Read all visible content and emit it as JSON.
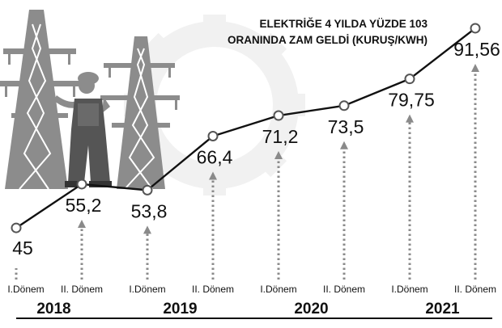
{
  "chart_data": {
    "type": "line",
    "title_lines": [
      "ELEKTRİĞE 4 YILDA YÜZDE 103",
      "ORANINDA ZAM GELDİ (KURUŞ/KWH)"
    ],
    "x": [
      "2018 I.Dönem",
      "2018 II. Dönem",
      "2019 I.Dönem",
      "2019 II. Dönem",
      "2020 I.Dönem",
      "2020 II. Dönem",
      "2021 I.Dönem",
      "2021 II. Dönem"
    ],
    "period_labels": [
      "I.Dönem",
      "II. Dönem",
      "I.Dönem",
      "II. Dönem",
      "I.Dönem",
      "II. Dönem",
      "I.Dönem",
      "II. Dönem"
    ],
    "years": [
      "2018",
      "2019",
      "2020",
      "2021"
    ],
    "values": [
      45,
      55.2,
      53.8,
      66.4,
      71.2,
      73.5,
      79.75,
      91.56
    ],
    "value_labels": [
      "45",
      "55,2",
      "53,8",
      "66,4",
      "71,2",
      "73,5",
      "79,75",
      "91,56"
    ],
    "ylim": [
      42,
      94
    ],
    "grid": false,
    "legend": "none",
    "colors": {
      "line": "#111111",
      "marker_fill": "#ffffff",
      "arrow": "#8a8a8a",
      "illustration": "#8c8c8c",
      "gear": "#f1f1f1",
      "text": "#111111"
    },
    "decoration": [
      "power-pylon-icon",
      "power-pylon-icon",
      "worker-figure-icon",
      "gear-icon"
    ]
  }
}
